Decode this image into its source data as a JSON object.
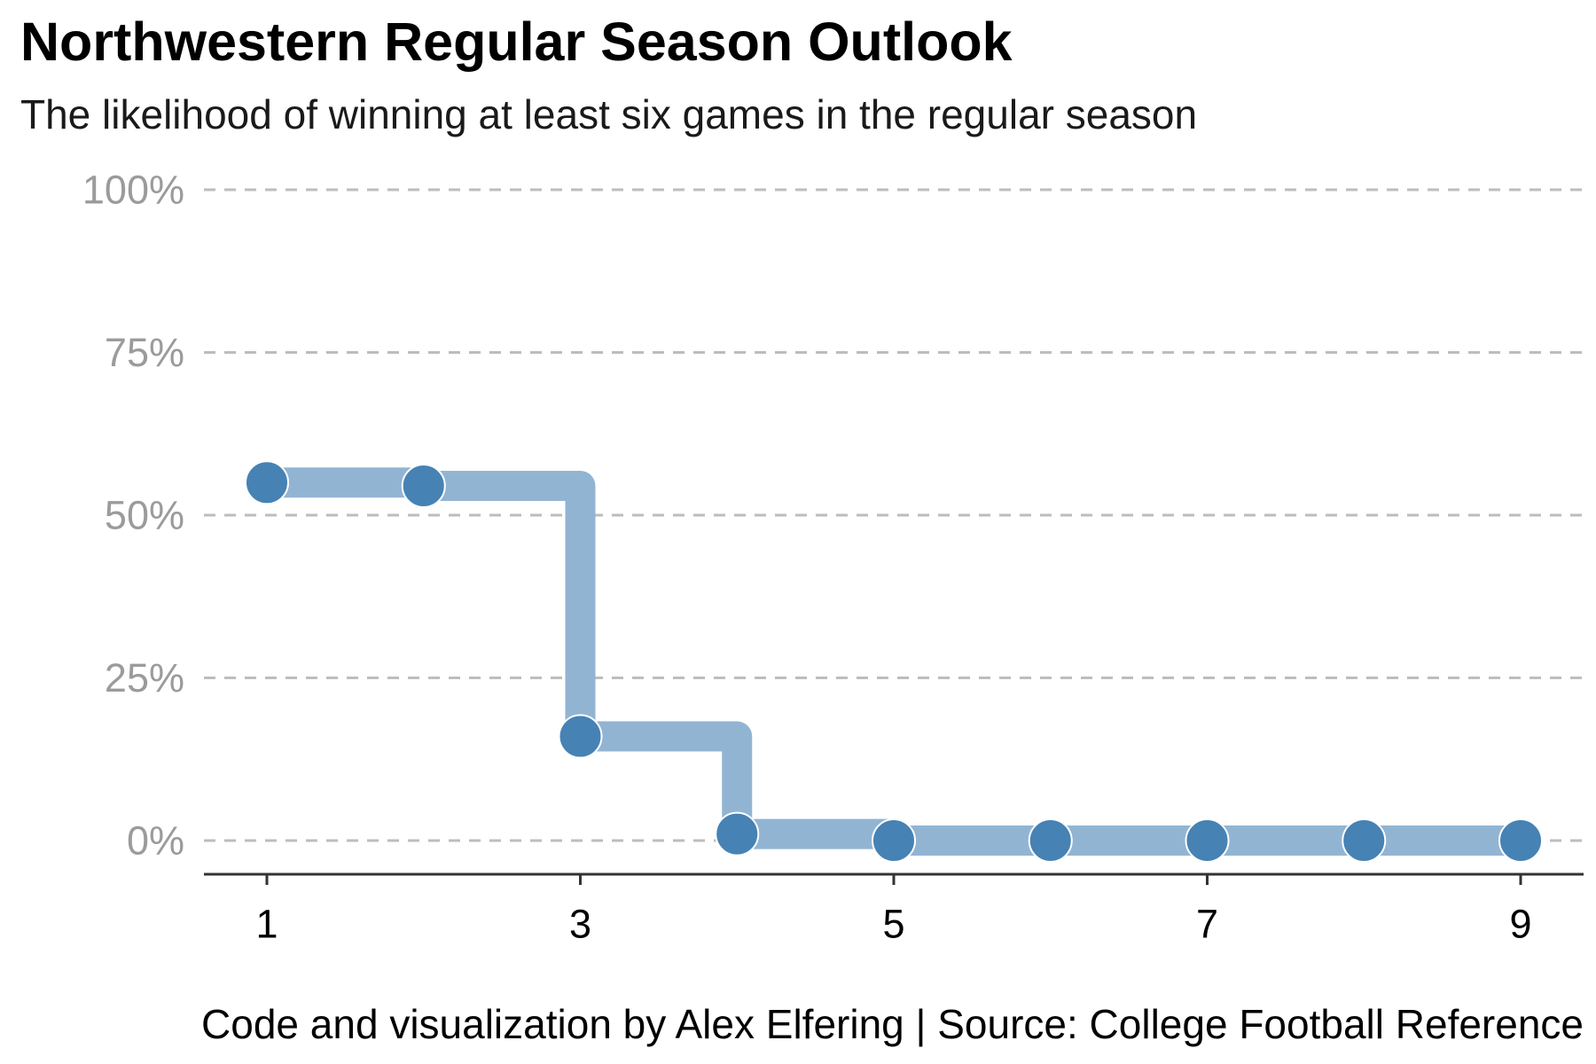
{
  "chart_data": {
    "type": "line",
    "title": "Northwestern Regular Season Outlook",
    "subtitle": "The likelihood of winning at least six games in the regular season",
    "caption": "Code and visualization by Alex Elfering | Source: College Football Reference",
    "xlabel": "",
    "ylabel": "",
    "x": [
      1,
      2,
      3,
      4,
      5,
      6,
      7,
      8,
      9
    ],
    "y": [
      55,
      54.5,
      16,
      1,
      0,
      0,
      0,
      0,
      0
    ],
    "xlim": [
      0.6,
      9.4
    ],
    "ylim": [
      -5,
      100
    ],
    "x_ticks": [
      1,
      3,
      5,
      7,
      9
    ],
    "x_tick_labels": [
      "1",
      "3",
      "5",
      "7",
      "9"
    ],
    "y_ticks": [
      0,
      25,
      50,
      75,
      100
    ],
    "y_tick_labels": [
      "0%",
      "25%",
      "50%",
      "75%",
      "100%"
    ],
    "grid": "horizontal dashed",
    "step": "hv",
    "colors": {
      "step_line": "#92b4d3",
      "points": "#4682b4",
      "grid": "#bdbdbd",
      "axis": "#333333"
    }
  }
}
